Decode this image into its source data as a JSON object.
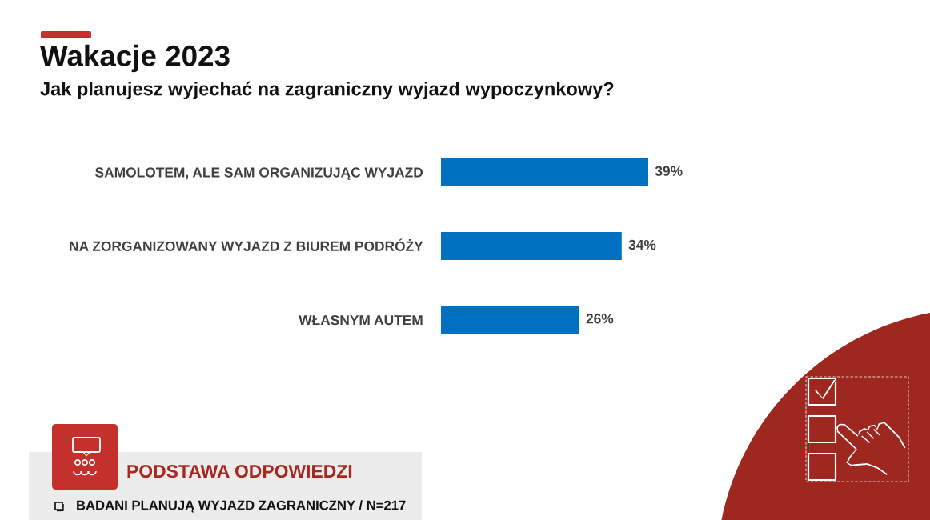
{
  "chart_data": {
    "type": "bar",
    "orientation": "horizontal",
    "title": "Wakacje 2023",
    "subtitle": "Jak planujesz wyjechać na zagraniczny wyjazd wypoczynkowy?",
    "categories": [
      "SAMOLOTEM, ALE SAM ORGANIZUJĄC WYJAZD",
      "NA ZORGANIZOWANY WYJAZD Z BIUREM PODRÓŻY",
      "WŁASNYM AUTEM"
    ],
    "values": [
      39,
      34,
      26
    ],
    "color": "#0070c0",
    "value_labels": [
      "39%",
      "34%",
      "26%"
    ],
    "tick_labels": "y",
    "annotations": [
      "PODSTAWA ODPOWIEDZI",
      "BADANI PLANUJĄ WYJAZD ZAGRANICZNY / N=217"
    ]
  }
}
